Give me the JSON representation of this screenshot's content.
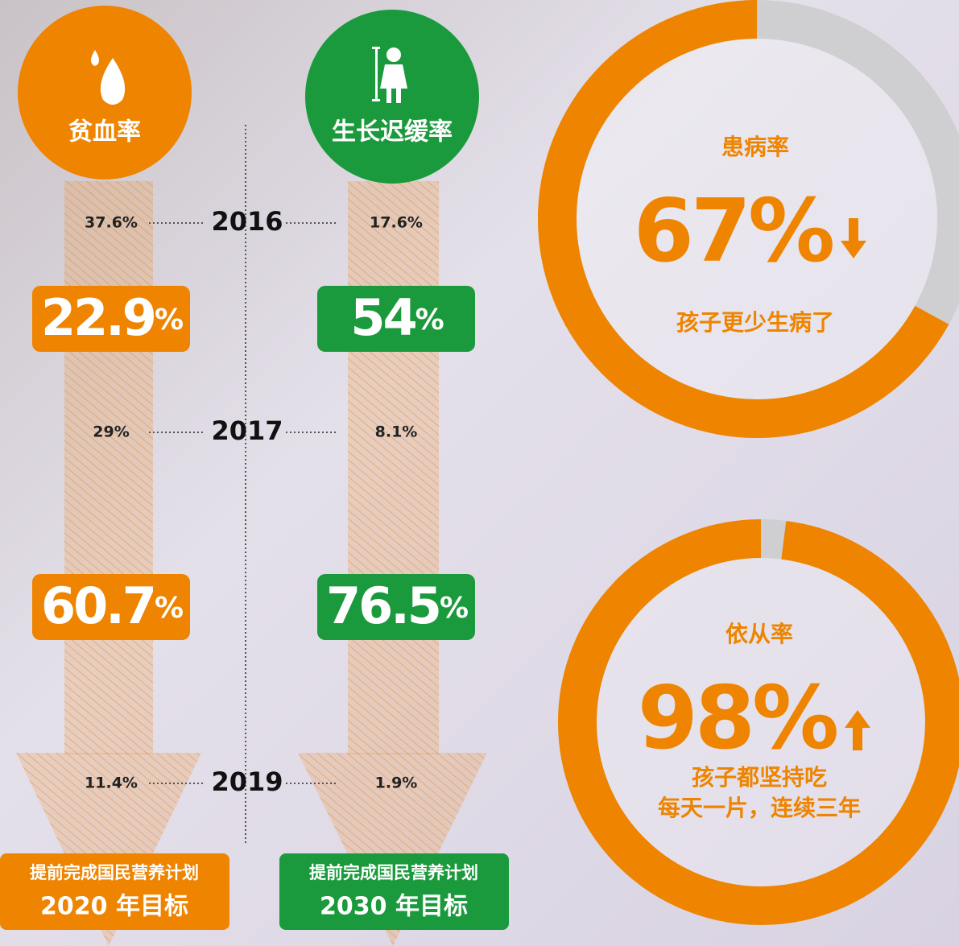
{
  "left": {
    "title": "贫血率",
    "rows": [
      "37.6%",
      "29%",
      "11.4%"
    ],
    "badges": [
      {
        "number": "22.9",
        "unit": "%"
      },
      {
        "number": "60.7",
        "unit": "%"
      }
    ],
    "goal": {
      "line1": "提前完成国民营养计划",
      "line2": "2020 年目标"
    }
  },
  "right": {
    "title": "生长迟缓率",
    "rows": [
      "17.6%",
      "8.1%",
      "1.9%"
    ],
    "badges": [
      {
        "number": "54",
        "unit": "%"
      },
      {
        "number": "76.5",
        "unit": "%"
      }
    ],
    "goal": {
      "line1": "提前完成国民营养计划",
      "line2": "2030 年目标"
    }
  },
  "years": [
    "2016",
    "2017",
    "2019"
  ],
  "rings": [
    {
      "title": "患病率",
      "value": 67,
      "label": "67%",
      "caption": [
        "孩子更少生病了"
      ]
    },
    {
      "title": "依从率",
      "value": 98,
      "label": "98%",
      "caption": [
        "孩子都坚持吃",
        "每天一片，连续三年"
      ]
    }
  ]
}
